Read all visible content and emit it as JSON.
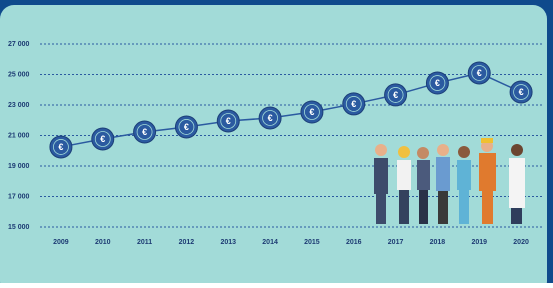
{
  "chart_data": {
    "type": "line",
    "categories": [
      "2009",
      "2010",
      "2011",
      "2012",
      "2013",
      "2014",
      "2015",
      "2016",
      "2017",
      "2018",
      "2019",
      "2020"
    ],
    "values": [
      20250,
      20770,
      21230,
      21560,
      21950,
      22150,
      22540,
      23070,
      23660,
      24440,
      25100,
      23850
    ],
    "color": "#2b5aa0",
    "marker_label": "€",
    "ylim": [
      15000,
      27000
    ],
    "yticks": [
      {
        "value": 15000,
        "label": "15 000"
      },
      {
        "value": 17000,
        "label": "17 000"
      },
      {
        "value": 19000,
        "label": "19 000"
      },
      {
        "value": 21000,
        "label": "21 000"
      },
      {
        "value": 23000,
        "label": "23 000"
      },
      {
        "value": 25000,
        "label": "25 000"
      },
      {
        "value": 27000,
        "label": "27 000"
      }
    ],
    "grid": true
  }
}
